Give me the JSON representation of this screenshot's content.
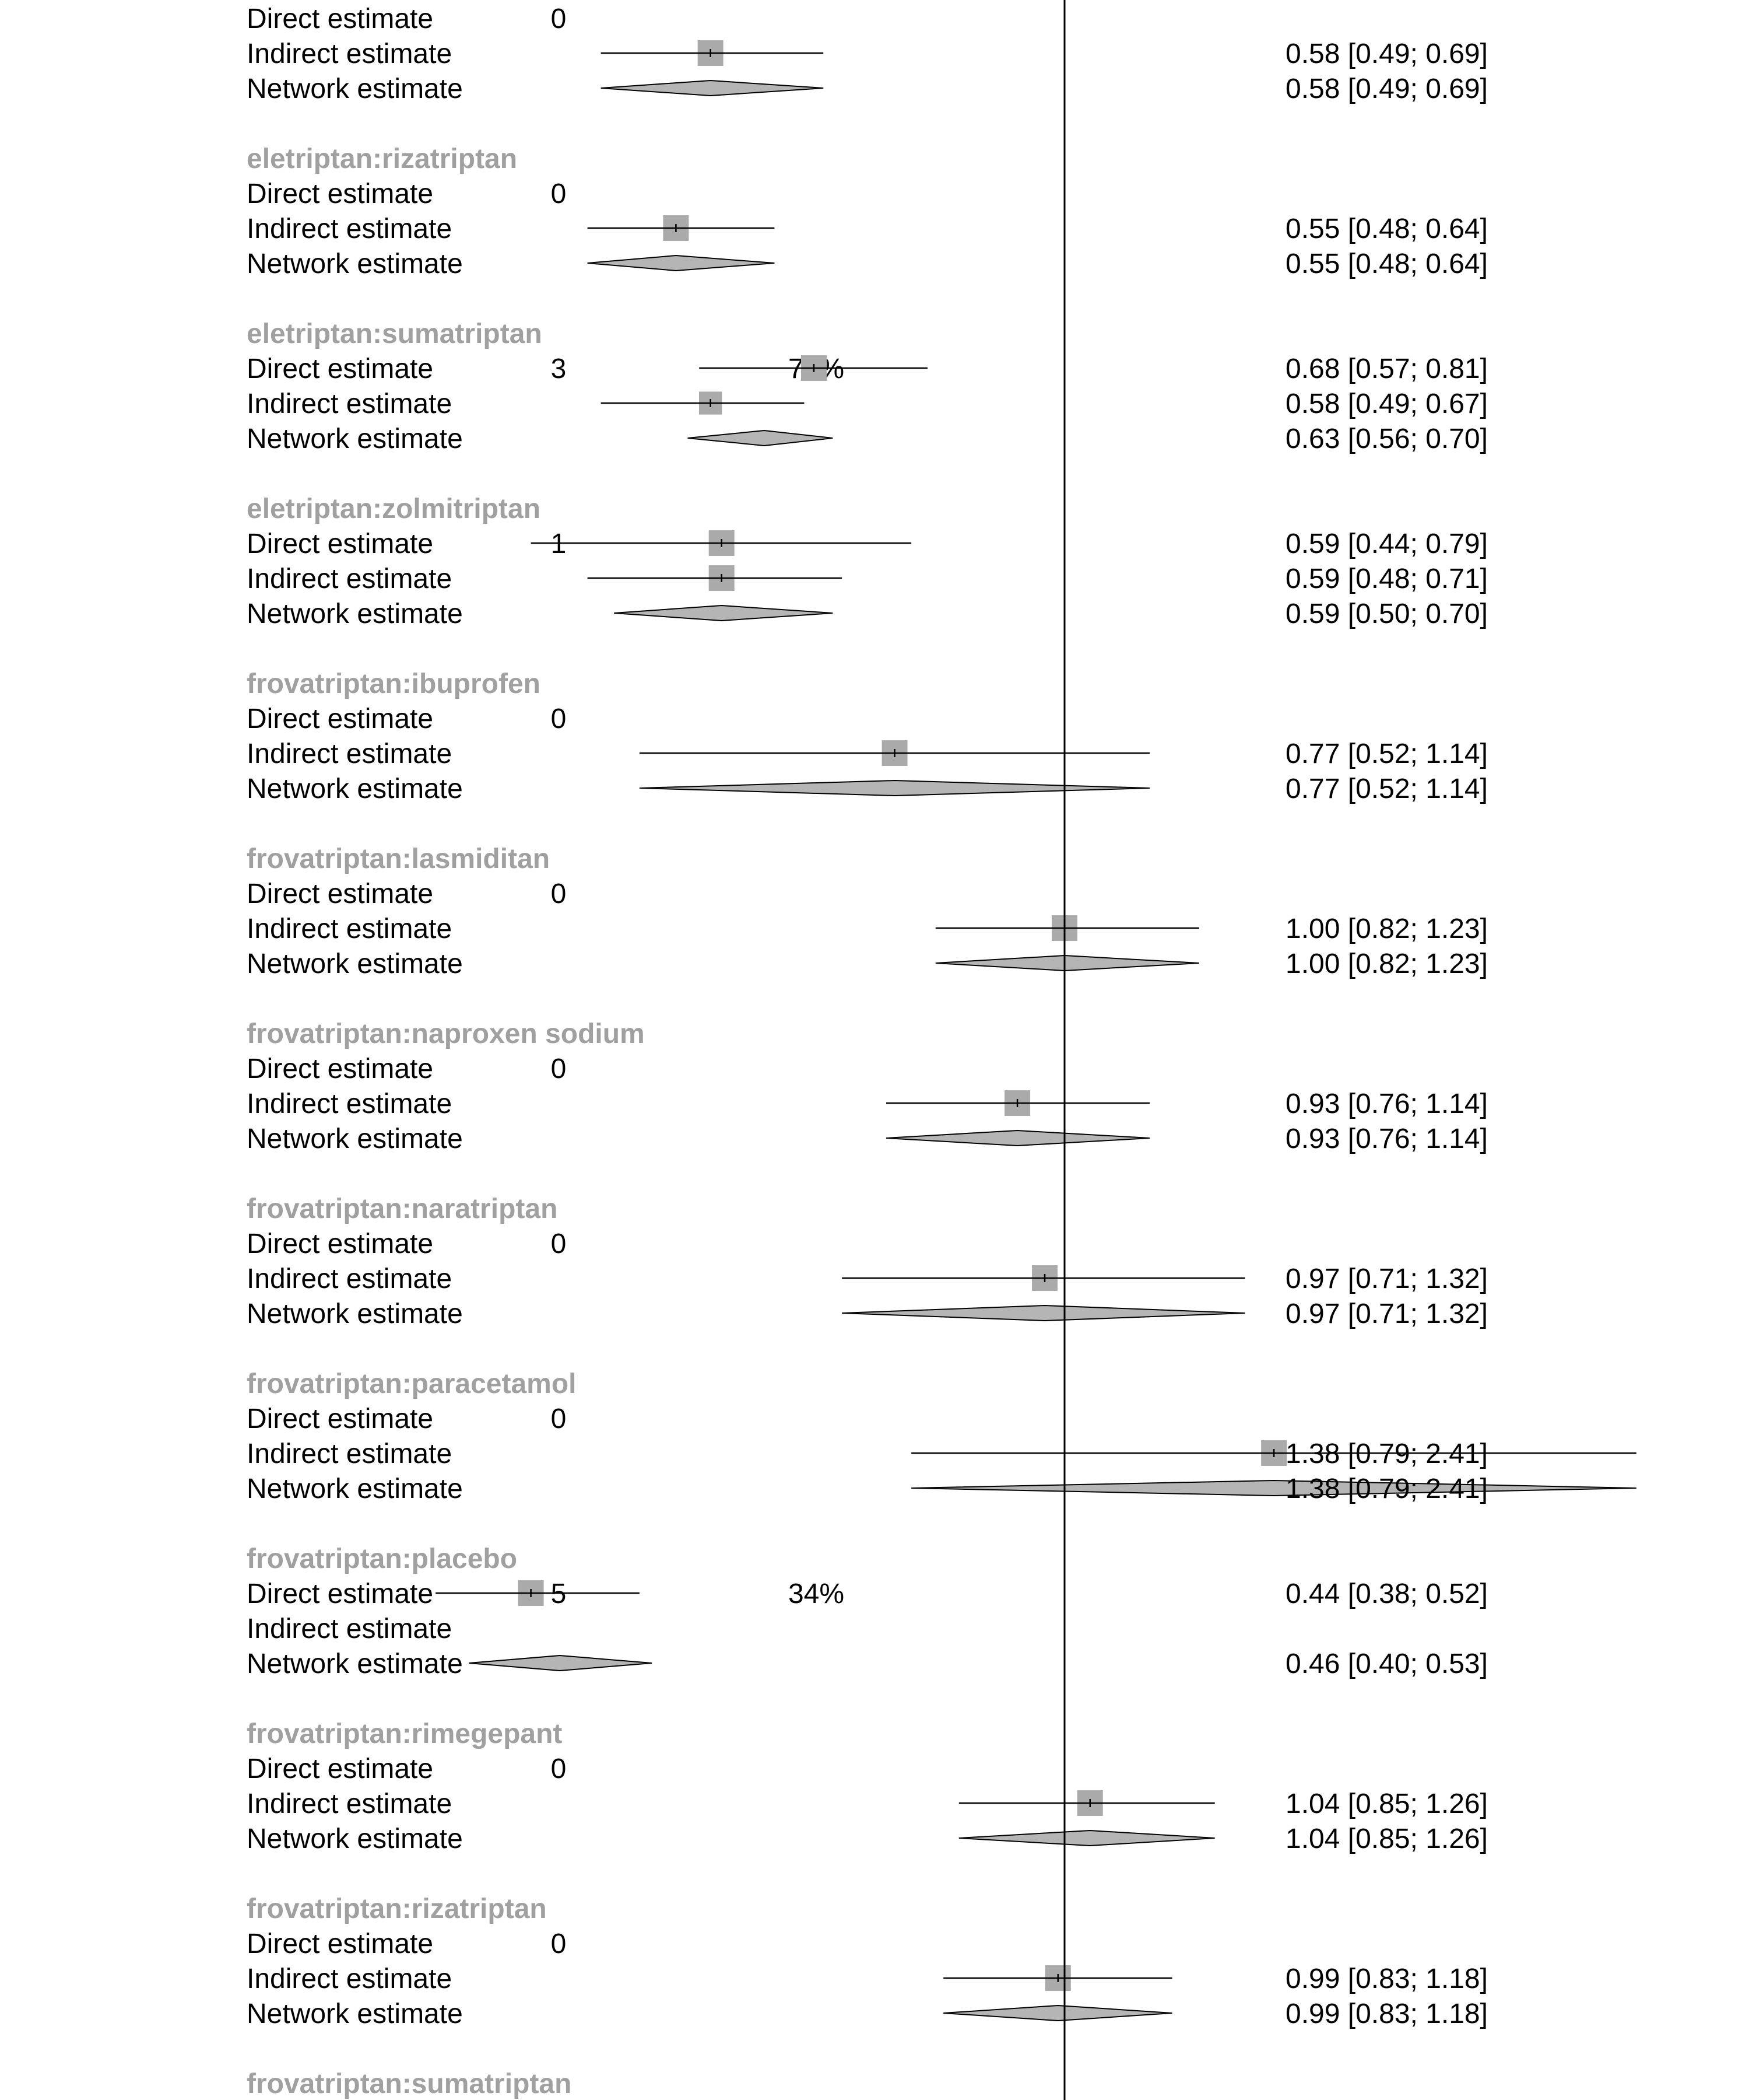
{
  "chart_data": {
    "type": "forest",
    "null_value": 1,
    "x_scale": "log",
    "xlim": [
      0.32,
      3.2
    ],
    "colors": {
      "group_label": "#a0a0a0",
      "square_fill": "#aaaaaa",
      "diamond_fill": "#b5b5b5",
      "line": "#000000"
    },
    "rows": [
      {
        "kind": "est",
        "label": "Direct estimate",
        "k": "0"
      },
      {
        "kind": "est",
        "label": "Indirect estimate",
        "te": 0.58,
        "lo": 0.49,
        "hi": 0.69,
        "ci": "0.58  [0.49; 0.69]",
        "weight": 1.0
      },
      {
        "kind": "net",
        "label": "Network estimate",
        "te": 0.58,
        "lo": 0.49,
        "hi": 0.69,
        "ci": "0.58  [0.49; 0.69]"
      },
      {
        "kind": "blank"
      },
      {
        "kind": "group",
        "label": "eletriptan:rizatriptan"
      },
      {
        "kind": "est",
        "label": "Direct estimate",
        "k": "0"
      },
      {
        "kind": "est",
        "label": "Indirect estimate",
        "te": 0.55,
        "lo": 0.48,
        "hi": 0.64,
        "ci": "0.55  [0.48; 0.64]",
        "weight": 1.0
      },
      {
        "kind": "net",
        "label": "Network estimate",
        "te": 0.55,
        "lo": 0.48,
        "hi": 0.64,
        "ci": "0.55  [0.48; 0.64]"
      },
      {
        "kind": "blank"
      },
      {
        "kind": "group",
        "label": "eletriptan:sumatriptan"
      },
      {
        "kind": "est",
        "label": "Direct estimate",
        "k": "3",
        "prop": "72%",
        "te": 0.68,
        "lo": 0.57,
        "hi": 0.81,
        "ci": "0.68  [0.57; 0.81]",
        "weight": 1.0
      },
      {
        "kind": "est",
        "label": "Indirect estimate",
        "te": 0.58,
        "lo": 0.49,
        "hi": 0.67,
        "ci": "0.58  [0.49; 0.67]",
        "weight": 0.8
      },
      {
        "kind": "net",
        "label": "Network estimate",
        "te": 0.63,
        "lo": 0.56,
        "hi": 0.7,
        "ci": "0.63  [0.56; 0.70]"
      },
      {
        "kind": "blank"
      },
      {
        "kind": "group",
        "label": "eletriptan:zolmitriptan"
      },
      {
        "kind": "est",
        "label": "Direct estimate",
        "k": "1",
        "te": 0.59,
        "lo": 0.44,
        "hi": 0.79,
        "ci": "0.59  [0.44; 0.79]",
        "weight": 1.0
      },
      {
        "kind": "est",
        "label": "Indirect estimate",
        "te": 0.59,
        "lo": 0.48,
        "hi": 0.71,
        "ci": "0.59  [0.48; 0.71]",
        "weight": 1.0
      },
      {
        "kind": "net",
        "label": "Network estimate",
        "te": 0.59,
        "lo": 0.5,
        "hi": 0.7,
        "ci": "0.59  [0.50; 0.70]"
      },
      {
        "kind": "blank"
      },
      {
        "kind": "group",
        "label": "frovatriptan:ibuprofen"
      },
      {
        "kind": "est",
        "label": "Direct estimate",
        "k": "0"
      },
      {
        "kind": "est",
        "label": "Indirect estimate",
        "te": 0.77,
        "lo": 0.52,
        "hi": 1.14,
        "ci": "0.77  [0.52; 1.14]",
        "weight": 1.0
      },
      {
        "kind": "net",
        "label": "Network estimate",
        "te": 0.77,
        "lo": 0.52,
        "hi": 1.14,
        "ci": "0.77  [0.52; 1.14]"
      },
      {
        "kind": "blank"
      },
      {
        "kind": "group",
        "label": "frovatriptan:lasmiditan"
      },
      {
        "kind": "est",
        "label": "Direct estimate",
        "k": "0"
      },
      {
        "kind": "est",
        "label": "Indirect estimate",
        "te": 1.0,
        "lo": 0.82,
        "hi": 1.23,
        "ci": "1.00  [0.82; 1.23]",
        "weight": 1.0
      },
      {
        "kind": "net",
        "label": "Network estimate",
        "te": 1.0,
        "lo": 0.82,
        "hi": 1.23,
        "ci": "1.00  [0.82; 1.23]"
      },
      {
        "kind": "blank"
      },
      {
        "kind": "group",
        "label": "frovatriptan:naproxen sodium"
      },
      {
        "kind": "est",
        "label": "Direct estimate",
        "k": "0"
      },
      {
        "kind": "est",
        "label": "Indirect estimate",
        "te": 0.93,
        "lo": 0.76,
        "hi": 1.14,
        "ci": "0.93  [0.76; 1.14]",
        "weight": 1.0
      },
      {
        "kind": "net",
        "label": "Network estimate",
        "te": 0.93,
        "lo": 0.76,
        "hi": 1.14,
        "ci": "0.93  [0.76; 1.14]"
      },
      {
        "kind": "blank"
      },
      {
        "kind": "group",
        "label": "frovatriptan:naratriptan"
      },
      {
        "kind": "est",
        "label": "Direct estimate",
        "k": "0"
      },
      {
        "kind": "est",
        "label": "Indirect estimate",
        "te": 0.97,
        "lo": 0.71,
        "hi": 1.32,
        "ci": "0.97  [0.71; 1.32]",
        "weight": 1.0
      },
      {
        "kind": "net",
        "label": "Network estimate",
        "te": 0.97,
        "lo": 0.71,
        "hi": 1.32,
        "ci": "0.97  [0.71; 1.32]"
      },
      {
        "kind": "blank"
      },
      {
        "kind": "group",
        "label": "frovatriptan:paracetamol"
      },
      {
        "kind": "est",
        "label": "Direct estimate",
        "k": "0"
      },
      {
        "kind": "est",
        "label": "Indirect estimate",
        "te": 1.38,
        "lo": 0.79,
        "hi": 2.41,
        "ci": "1.38  [0.79; 2.41]",
        "weight": 1.0
      },
      {
        "kind": "net",
        "label": "Network estimate",
        "te": 1.38,
        "lo": 0.79,
        "hi": 2.41,
        "ci": "1.38  [0.79; 2.41]"
      },
      {
        "kind": "blank"
      },
      {
        "kind": "group",
        "label": "frovatriptan:placebo"
      },
      {
        "kind": "est",
        "label": "Direct estimate",
        "k": "5",
        "prop": "34%",
        "te": 0.44,
        "lo": 0.38,
        "hi": 0.52,
        "ci": "0.44  [0.38; 0.52]",
        "weight": 1.0
      },
      {
        "kind": "est",
        "label": "Indirect estimate"
      },
      {
        "kind": "net",
        "label": "Network estimate",
        "te": 0.46,
        "lo": 0.4,
        "hi": 0.53,
        "ci": "0.46  [0.40; 0.53]"
      },
      {
        "kind": "blank"
      },
      {
        "kind": "group",
        "label": "frovatriptan:rimegepant"
      },
      {
        "kind": "est",
        "label": "Direct estimate",
        "k": "0"
      },
      {
        "kind": "est",
        "label": "Indirect estimate",
        "te": 1.04,
        "lo": 0.85,
        "hi": 1.26,
        "ci": "1.04  [0.85; 1.26]",
        "weight": 1.0
      },
      {
        "kind": "net",
        "label": "Network estimate",
        "te": 1.04,
        "lo": 0.85,
        "hi": 1.26,
        "ci": "1.04  [0.85; 1.26]"
      },
      {
        "kind": "blank"
      },
      {
        "kind": "group",
        "label": "frovatriptan:rizatriptan"
      },
      {
        "kind": "est",
        "label": "Direct estimate",
        "k": "0"
      },
      {
        "kind": "est",
        "label": "Indirect estimate",
        "te": 0.99,
        "lo": 0.83,
        "hi": 1.18,
        "ci": "0.99  [0.83; 1.18]",
        "weight": 1.0
      },
      {
        "kind": "net",
        "label": "Network estimate",
        "te": 0.99,
        "lo": 0.83,
        "hi": 1.18,
        "ci": "0.99  [0.83; 1.18]"
      },
      {
        "kind": "blank"
      },
      {
        "kind": "group",
        "label": "frovatriptan:sumatriptan"
      }
    ]
  }
}
